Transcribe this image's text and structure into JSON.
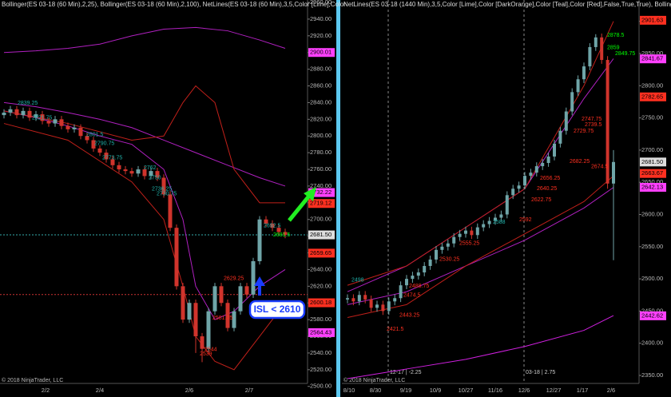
{
  "chart_data": [
    {
      "type": "candlestick",
      "header": "Bollinger(ES 03-18 (60 Min),2,25), Bollinger(ES 03-18 (60 Min),2,100), NetLines(ES 03-18 (60 Min),3,5,Color [Lime],Color",
      "footer": "© 2018 NinjaTrader, LLC",
      "annotation": "ISL < 2610",
      "categories": [
        "2/2",
        "2/4",
        "2/6",
        "2/7"
      ],
      "open": [
        2825,
        2828,
        2832,
        2825,
        2830,
        2822,
        2826,
        2818,
        2815,
        2820,
        2812,
        2808,
        2810,
        2800,
        2795,
        2785,
        2780,
        2772,
        2765,
        2760,
        2758,
        2755,
        2760,
        2752,
        2758,
        2750,
        2730,
        2690,
        2620,
        2580,
        2600,
        2560,
        2545,
        2590,
        2620,
        2600,
        2570,
        2590,
        2620,
        2610,
        2650,
        2700,
        2695,
        2690,
        2685
      ],
      "high": [
        2832,
        2836,
        2836,
        2834,
        2834,
        2830,
        2830,
        2822,
        2824,
        2824,
        2816,
        2814,
        2814,
        2804,
        2799,
        2789,
        2784,
        2776,
        2769,
        2764,
        2762,
        2764,
        2764,
        2762,
        2762,
        2754,
        2734,
        2694,
        2624,
        2604,
        2604,
        2564,
        2594,
        2624,
        2624,
        2604,
        2594,
        2624,
        2624,
        2654,
        2704,
        2704,
        2699,
        2694,
        2689
      ],
      "low": [
        2821,
        2824,
        2821,
        2821,
        2818,
        2818,
        2814,
        2811,
        2811,
        2808,
        2804,
        2804,
        2796,
        2791,
        2781,
        2776,
        2768,
        2761,
        2756,
        2754,
        2751,
        2751,
        2748,
        2748,
        2746,
        2726,
        2686,
        2616,
        2576,
        2576,
        2540,
        2529,
        2541,
        2586,
        2596,
        2566,
        2566,
        2586,
        2606,
        2606,
        2646,
        2691,
        2686,
        2681,
        2677.5
      ],
      "close": [
        2828,
        2832,
        2825,
        2830,
        2822,
        2826,
        2818,
        2815,
        2820,
        2812,
        2808,
        2810,
        2800,
        2795,
        2785,
        2780,
        2772,
        2765,
        2760,
        2758,
        2755,
        2760,
        2752,
        2758,
        2750,
        2730,
        2690,
        2620,
        2580,
        2600,
        2560,
        2545,
        2590,
        2620,
        2600,
        2570,
        2590,
        2620,
        2610,
        2650,
        2700,
        2695,
        2690,
        2685,
        2681.5
      ],
      "up_color": "#6fa5a8",
      "down_color": "#d0342c",
      "ylim": [
        2487.3,
        2962.9
      ],
      "yticks": [
        {
          "value": 2500,
          "label": "2500.00"
        },
        {
          "value": 2520,
          "label": "2520.00"
        },
        {
          "value": 2540,
          "label": "2540.00"
        },
        {
          "value": 2560,
          "label": "2560.00"
        },
        {
          "value": 2580,
          "label": "2580.00"
        },
        {
          "value": 2600,
          "label": "2600.00"
        },
        {
          "value": 2620,
          "label": "2620.00"
        },
        {
          "value": 2640,
          "label": "2640.00"
        },
        {
          "value": 2660,
          "label": "2660.00"
        },
        {
          "value": 2680,
          "label": "2680.00"
        },
        {
          "value": 2700,
          "label": "2700.00"
        },
        {
          "value": 2720,
          "label": "2720.00"
        },
        {
          "value": 2740,
          "label": "2740.00"
        },
        {
          "value": 2760,
          "label": "2760.00"
        },
        {
          "value": 2780,
          "label": "2780.00"
        },
        {
          "value": 2800,
          "label": "2800.00"
        },
        {
          "value": 2820,
          "label": "2820.00"
        },
        {
          "value": 2840,
          "label": "2840.00"
        },
        {
          "value": 2860,
          "label": "2860.00"
        },
        {
          "value": 2880,
          "label": "2880.00"
        },
        {
          "value": 2900,
          "label": "2900.00"
        },
        {
          "value": 2920,
          "label": "2920.00"
        },
        {
          "value": 2940,
          "label": "2940.00"
        },
        {
          "value": 2960,
          "label": "2960.00"
        }
      ],
      "bands": [
        {
          "color": "#b020c0",
          "x": [
            0,
            5,
            10,
            15,
            20,
            25,
            30,
            35,
            40,
            44
          ],
          "values": [
            2900,
            2902,
            2905,
            2910,
            2920,
            2928,
            2930,
            2926,
            2915,
            2905
          ]
        },
        {
          "color": "#b020c0",
          "x": [
            0,
            5,
            10,
            15,
            20,
            25,
            28,
            30,
            33,
            36,
            40,
            44
          ],
          "values": [
            2830,
            2822,
            2812,
            2800,
            2790,
            2760,
            2700,
            2620,
            2580,
            2590,
            2620,
            2640
          ]
        },
        {
          "color": "#b020c0",
          "x": [
            0,
            5,
            10,
            15,
            20,
            25,
            30,
            35,
            40,
            44
          ],
          "values": [
            2840,
            2835,
            2828,
            2820,
            2810,
            2795,
            2780,
            2765,
            2750,
            2740
          ]
        },
        {
          "color": "#c0201a",
          "x": [
            0,
            10,
            20,
            25,
            28,
            30,
            33,
            36,
            40,
            44
          ],
          "values": [
            2830,
            2815,
            2795,
            2800,
            2840,
            2860,
            2840,
            2760,
            2720,
            2720
          ]
        },
        {
          "color": "#c0201a",
          "x": [
            0,
            10,
            20,
            25,
            28,
            30,
            33,
            36,
            40,
            44
          ],
          "values": [
            2815,
            2795,
            2745,
            2700,
            2620,
            2560,
            2530,
            2520,
            2560,
            2600
          ]
        }
      ],
      "hlines": [
        {
          "value": 2681.5,
          "color": "#3aa"
        },
        {
          "value": 2610,
          "color": "#c33"
        }
      ],
      "price_tags": [
        {
          "value": 2900.01,
          "color": "#ff40ff"
        },
        {
          "value": 2732.22,
          "color": "#ff40ff"
        },
        {
          "value": 2719.12,
          "color": "#ff3020"
        },
        {
          "value": 2681.5,
          "label": "2681.50",
          "color": "#dddddd"
        },
        {
          "value": 2659.65,
          "color": "#ff3020"
        },
        {
          "value": 2600.18,
          "color": "#ff3020"
        },
        {
          "value": 2564.43,
          "color": "#ff40ff"
        }
      ],
      "labels": [
        {
          "value": 2839.25,
          "color": "#20b2aa"
        },
        {
          "value": 2821.75,
          "color": "#20b2aa"
        },
        {
          "value": 2801.5,
          "color": "#20b2aa"
        },
        {
          "value": 2790.75,
          "color": "#20b2aa"
        },
        {
          "value": 2773.75,
          "color": "#20b2aa"
        },
        {
          "value": 2762,
          "color": "#20b2aa"
        },
        {
          "value": 2750,
          "color": "#20b2aa"
        },
        {
          "value": 2736.25,
          "color": "#20b2aa"
        },
        {
          "value": 2730.75,
          "color": "#20b2aa"
        },
        {
          "value": 2692.5,
          "color": "#20b2aa"
        },
        {
          "value": 2681.5,
          "color": "#00ff00"
        },
        {
          "value": 2629.25,
          "color": "#ff3020"
        },
        {
          "value": 2581.75,
          "color": "#ff3020"
        },
        {
          "value": 2544,
          "color": "#ff3020"
        },
        {
          "value": 2539,
          "color": "#ff3020"
        }
      ]
    },
    {
      "type": "candlestick",
      "header": "NetLines(ES 03-18 (1440 Min),3,5,Color [Lime],Color [DarkOrange],Color [Teal],Color [Red],False,True,True), Bollinger",
      "footer": "© 2018 NinjaTrader, LLC",
      "session_labels": [
        "12-17 | -2.25",
        "03-18 | 2.75"
      ],
      "categories": [
        "8/10",
        "8/30",
        "9/19",
        "10/9",
        "10/27",
        "11/16",
        "12/6",
        "12/27",
        "1/17",
        "2/6"
      ],
      "open": [
        2468,
        2470,
        2465,
        2475,
        2468,
        2455,
        2460,
        2450,
        2465,
        2470,
        2490,
        2500,
        2505,
        2510,
        2520,
        2530,
        2545,
        2550,
        2555,
        2565,
        2570,
        2575,
        2568,
        2580,
        2585,
        2590,
        2595,
        2600,
        2630,
        2640,
        2645,
        2660,
        2665,
        2675,
        2680,
        2690,
        2710,
        2730,
        2760,
        2790,
        2810,
        2830,
        2860,
        2875,
        2840,
        2648
      ],
      "high": [
        2476,
        2476,
        2481,
        2481,
        2474,
        2466,
        2466,
        2471,
        2476,
        2496,
        2506,
        2511,
        2516,
        2526,
        2536,
        2551,
        2556,
        2561,
        2571,
        2576,
        2581,
        2581,
        2586,
        2591,
        2596,
        2601,
        2606,
        2636,
        2646,
        2651,
        2666,
        2671,
        2681,
        2686,
        2696,
        2716,
        2736,
        2766,
        2796,
        2816,
        2836,
        2866,
        2880,
        2881,
        2846,
        2700
      ],
      "low": [
        2462,
        2459,
        2459,
        2462,
        2449,
        2449,
        2444,
        2444,
        2459,
        2464,
        2484,
        2494,
        2499,
        2504,
        2514,
        2524,
        2539,
        2544,
        2549,
        2559,
        2564,
        2562,
        2562,
        2574,
        2579,
        2584,
        2589,
        2594,
        2624,
        2634,
        2639,
        2654,
        2659,
        2669,
        2674,
        2684,
        2704,
        2724,
        2754,
        2784,
        2804,
        2824,
        2854,
        2834,
        2640,
        2529
      ],
      "close": [
        2470,
        2465,
        2475,
        2468,
        2455,
        2460,
        2450,
        2465,
        2470,
        2490,
        2500,
        2505,
        2510,
        2520,
        2530,
        2545,
        2550,
        2555,
        2565,
        2570,
        2575,
        2568,
        2580,
        2585,
        2590,
        2595,
        2600,
        2630,
        2640,
        2645,
        2660,
        2665,
        2675,
        2680,
        2690,
        2710,
        2730,
        2760,
        2790,
        2810,
        2830,
        2860,
        2875,
        2840,
        2648,
        2681.5
      ],
      "up_color": "#6fa5a8",
      "down_color": "#d0342c",
      "ylim": [
        2316.5,
        2933.1
      ],
      "yticks": [
        {
          "value": 2350,
          "label": "2350.00"
        },
        {
          "value": 2400,
          "label": "2400.00"
        },
        {
          "value": 2450,
          "label": "2450.00"
        },
        {
          "value": 2500,
          "label": "2500.00"
        },
        {
          "value": 2550,
          "label": "2550.00"
        },
        {
          "value": 2600,
          "label": "2600.00"
        },
        {
          "value": 2650,
          "label": "2650.00"
        },
        {
          "value": 2700,
          "label": "2700.00"
        },
        {
          "value": 2750,
          "label": "2750.00"
        },
        {
          "value": 2800,
          "label": "2800.00"
        },
        {
          "value": 2850,
          "label": "2850.00"
        },
        {
          "value": 2900,
          "label": "2900.00"
        }
      ],
      "bands": [
        {
          "color": "#d020e0",
          "x": [
            0,
            10,
            20,
            30,
            40,
            45
          ],
          "values": [
            2345,
            2360,
            2375,
            2395,
            2420,
            2443
          ]
        },
        {
          "color": "#b020c0",
          "x": [
            0,
            10,
            20,
            30,
            40,
            45
          ],
          "values": [
            2460,
            2480,
            2520,
            2560,
            2610,
            2642
          ]
        },
        {
          "color": "#b020c0",
          "x": [
            0,
            10,
            20,
            30,
            40,
            45
          ],
          "values": [
            2480,
            2520,
            2580,
            2640,
            2780,
            2842
          ]
        },
        {
          "color": "#c0201a",
          "x": [
            0,
            10,
            20,
            30,
            40,
            45
          ],
          "values": [
            2490,
            2520,
            2580,
            2640,
            2800,
            2900
          ]
        },
        {
          "color": "#c0201a",
          "x": [
            0,
            10,
            20,
            30,
            40,
            45
          ],
          "values": [
            2440,
            2460,
            2520,
            2570,
            2620,
            2660
          ]
        }
      ],
      "hlines": [],
      "price_tags": [
        {
          "value": 2901.63,
          "color": "#ff3020"
        },
        {
          "value": 2841.67,
          "color": "#ff40ff"
        },
        {
          "value": 2782.65,
          "color": "#ff3020"
        },
        {
          "value": 2681.5,
          "label": "2681.50",
          "color": "#dddddd"
        },
        {
          "value": 2663.67,
          "color": "#ff3020"
        },
        {
          "value": 2642.13,
          "color": "#ff40ff"
        },
        {
          "value": 2442.62,
          "color": "#ff40ff"
        }
      ],
      "labels": [
        {
          "value": 2878.5,
          "color": "#00ff00"
        },
        {
          "value": 2859,
          "color": "#00ff00"
        },
        {
          "value": 2849.75,
          "color": "#00ff00"
        },
        {
          "value": 2747.75,
          "color": "#ff3020"
        },
        {
          "value": 2739.5,
          "color": "#ff3020"
        },
        {
          "value": 2729.75,
          "color": "#ff3020"
        },
        {
          "value": 2682.25,
          "color": "#ff3020"
        },
        {
          "value": 2674.5,
          "color": "#ff3020"
        },
        {
          "value": 2656.25,
          "color": "#ff3020"
        },
        {
          "value": 2640.25,
          "color": "#ff3020"
        },
        {
          "value": 2622.75,
          "color": "#ff3020"
        },
        {
          "value": 2592,
          "color": "#ff3020"
        },
        {
          "value": 2555.25,
          "color": "#ff3020"
        },
        {
          "value": 2530.25,
          "color": "#ff3020"
        },
        {
          "value": 2488.75,
          "color": "#ff3020"
        },
        {
          "value": 2474.5,
          "color": "#ff3020"
        },
        {
          "value": 2443.25,
          "color": "#ff3020"
        },
        {
          "value": 2421.5,
          "color": "#ff3020"
        },
        {
          "value": 2588,
          "color": "#20b2aa"
        },
        {
          "value": 2498,
          "color": "#20b2aa"
        }
      ]
    }
  ]
}
